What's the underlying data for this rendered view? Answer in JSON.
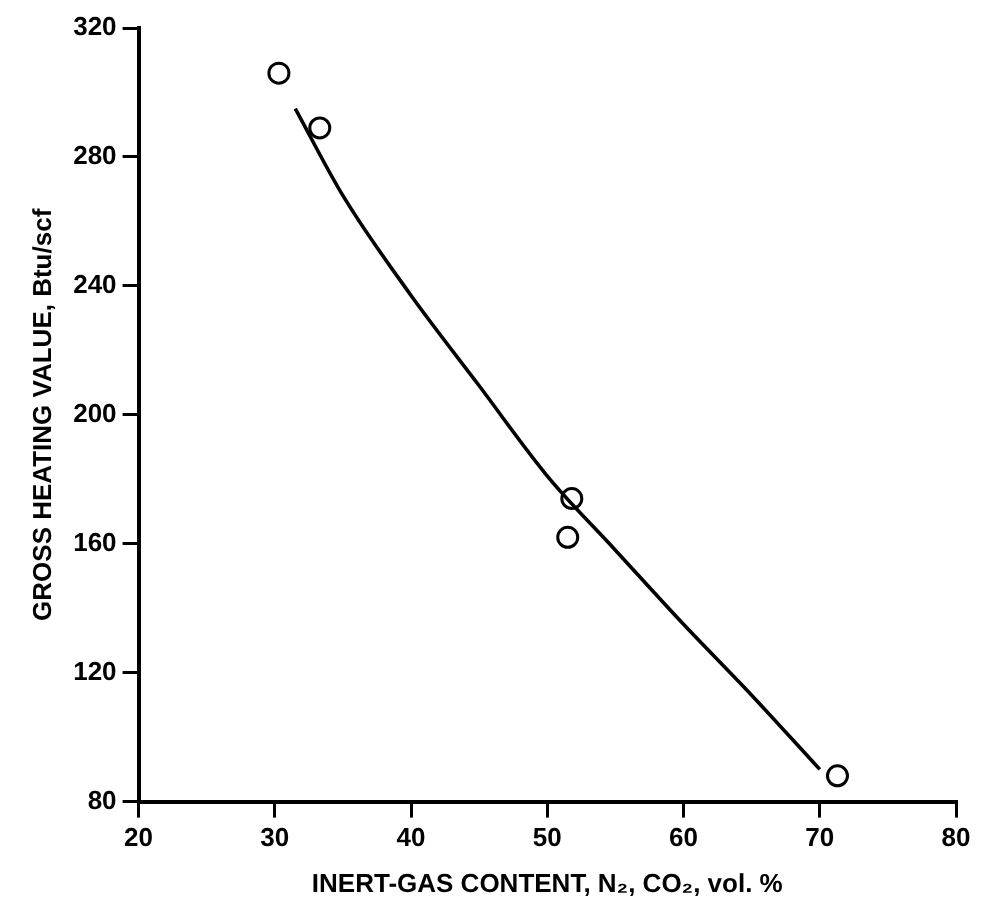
{
  "chart_data": {
    "type": "scatter",
    "xlabel": "INERT-GAS CONTENT, N₂, CO₂, vol. %",
    "ylabel": "GROSS HEATING VALUE, Btu/scf",
    "xlim": [
      20,
      80
    ],
    "xticks": [
      20,
      30,
      40,
      50,
      60,
      70,
      80
    ],
    "ylim": [
      80,
      320
    ],
    "yticks": [
      80,
      120,
      160,
      200,
      240,
      280,
      320
    ],
    "grid": false,
    "legend": false,
    "marker": "circle",
    "series": [
      {
        "type": "scatter",
        "color": "#000000",
        "x": [
          30.3,
          33.3,
          51.8,
          51.5,
          71.3
        ],
        "values": [
          306,
          289,
          174,
          162,
          88
        ]
      },
      {
        "type": "line",
        "color": "#000000",
        "marker": "none",
        "line_style": "solid",
        "x": [
          31.5,
          35,
          40,
          45,
          50,
          55,
          60,
          65,
          70
        ],
        "values": [
          295,
          268,
          237,
          209,
          181,
          158,
          135,
          113,
          90
        ]
      }
    ]
  }
}
